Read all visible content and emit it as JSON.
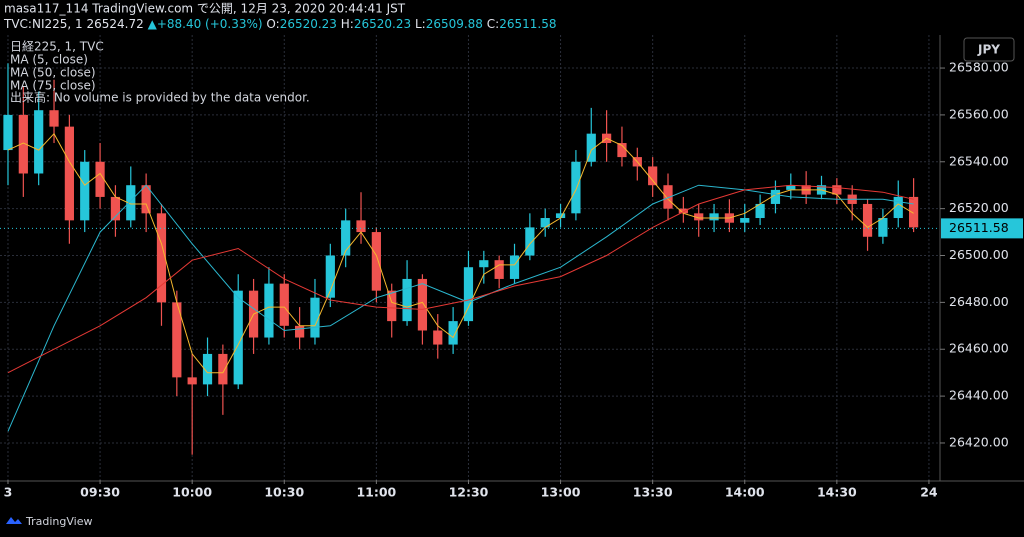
{
  "chart_data": {
    "type": "candlestick",
    "byline": "masa117_114 TradingView.com で公開, 12月 23, 2020 20:44:41 JST",
    "symbol": {
      "name": "TVC:NI225, 1",
      "price": 26524.72,
      "change": "+88.40 (+0.33%)",
      "ohlc": [
        {
          "label": "O:",
          "value": 26520.23
        },
        {
          "label": "H:",
          "value": 26520.23
        },
        {
          "label": "L:",
          "value": 26509.88
        },
        {
          "label": "C:",
          "value": 26511.58
        }
      ]
    },
    "title": "日経225, 1, TVC",
    "volume_note": "出来高: No volume is provided by the data vendor.",
    "currency": "JPY",
    "last_price": 26511.58,
    "brand": "TradingView",
    "up_color": "#26c6da",
    "down_color": "#ef5350",
    "xlim": [
      -2.6,
      303.6
    ],
    "ylim": [
      26404.2,
      26594.1
    ],
    "xticks": [
      {
        "value": 0,
        "label": "3"
      },
      {
        "value": 30,
        "label": "09:30"
      },
      {
        "value": 60,
        "label": "10:00"
      },
      {
        "value": 90,
        "label": "10:30"
      },
      {
        "value": 120,
        "label": "11:00"
      },
      {
        "value": 150,
        "label": "12:30"
      },
      {
        "value": 180,
        "label": "13:00"
      },
      {
        "value": 210,
        "label": "13:30"
      },
      {
        "value": 240,
        "label": "14:00"
      },
      {
        "value": 270,
        "label": "14:30"
      },
      {
        "value": 300,
        "label": "24"
      }
    ],
    "yticks": [
      {
        "value": 26420,
        "label": "26420.00"
      },
      {
        "value": 26440,
        "label": "26440.00"
      },
      {
        "value": 26460,
        "label": "26460.00"
      },
      {
        "value": 26480,
        "label": "26480.00"
      },
      {
        "value": 26500,
        "label": "26500.00"
      },
      {
        "value": 26520,
        "label": "26520.00"
      },
      {
        "value": 26540,
        "label": "26540.00"
      },
      {
        "value": 26560,
        "label": "26560.00"
      },
      {
        "value": 26580,
        "label": "26580.00"
      }
    ],
    "grid": true,
    "candles": {
      "x": [
        0,
        5,
        10,
        15,
        20,
        25,
        30,
        35,
        40,
        45,
        50,
        55,
        60,
        65,
        70,
        75,
        80,
        85,
        90,
        95,
        100,
        105,
        110,
        115,
        120,
        125,
        130,
        135,
        140,
        145,
        150,
        155,
        160,
        165,
        170,
        175,
        180,
        185,
        190,
        195,
        200,
        205,
        210,
        215,
        220,
        225,
        230,
        235,
        240,
        245,
        250,
        255,
        260,
        265,
        270,
        275,
        280,
        285,
        290,
        295
      ],
      "open": [
        26545,
        26560,
        26535,
        26562,
        26555,
        26515,
        26540,
        26525,
        26515,
        26530,
        26518,
        26480,
        26448,
        26445,
        26458,
        26445,
        26485,
        26465,
        26488,
        26470,
        26465,
        26482,
        26500,
        26515,
        26510,
        26485,
        26472,
        26490,
        26468,
        26462,
        26472,
        26495,
        26498,
        26490,
        26500,
        26512,
        26516,
        26518,
        26540,
        26552,
        26548,
        26542,
        26538,
        26530,
        26520,
        26518,
        26515,
        26518,
        26514,
        26516,
        26522,
        26528,
        26530,
        26526,
        26530,
        26526,
        26522,
        26508,
        26516,
        26525
      ],
      "high": [
        26582,
        26572,
        26570,
        26575,
        26560,
        26545,
        26548,
        26530,
        26538,
        26535,
        26522,
        26485,
        26458,
        26465,
        26462,
        26492,
        26490,
        26495,
        26492,
        26478,
        26490,
        26505,
        26520,
        26527,
        26512,
        26488,
        26498,
        26492,
        26475,
        26478,
        26502,
        26502,
        26500,
        26505,
        26518,
        26520,
        26522,
        26545,
        26563,
        26562,
        26555,
        26546,
        26542,
        26535,
        26525,
        26522,
        26522,
        26524,
        26522,
        26526,
        26532,
        26535,
        26536,
        26534,
        26533,
        26530,
        26524,
        26520,
        26532,
        26533
      ],
      "low": [
        26530,
        26525,
        26530,
        26548,
        26505,
        26510,
        26520,
        26508,
        26512,
        26510,
        26470,
        26440,
        26415,
        26440,
        26432,
        26443,
        26458,
        26462,
        26465,
        26460,
        26462,
        26478,
        26495,
        26505,
        26480,
        26465,
        26470,
        26462,
        26456,
        26458,
        26470,
        26488,
        26486,
        26488,
        26498,
        26508,
        26512,
        26515,
        26538,
        26540,
        26538,
        26532,
        26525,
        26515,
        26514,
        26508,
        26510,
        26510,
        26510,
        26513,
        26518,
        26524,
        26522,
        26524,
        26522,
        26515,
        26502,
        26505,
        26512,
        26510
      ],
      "close": [
        26560,
        26535,
        26562,
        26555,
        26515,
        26540,
        26525,
        26515,
        26530,
        26518,
        26480,
        26448,
        26445,
        26458,
        26445,
        26485,
        26465,
        26488,
        26470,
        26465,
        26482,
        26500,
        26515,
        26510,
        26485,
        26472,
        26490,
        26468,
        26462,
        26472,
        26495,
        26498,
        26490,
        26500,
        26512,
        26516,
        26518,
        26540,
        26552,
        26548,
        26542,
        26538,
        26530,
        26520,
        26518,
        26515,
        26518,
        26514,
        26516,
        26522,
        26528,
        26530,
        26526,
        26530,
        26526,
        26522,
        26508,
        26516,
        26525,
        26512
      ]
    },
    "ma": [
      {
        "name": "MA (5, close)",
        "color": "#f5b82e",
        "values": [
          26545,
          26548,
          26545,
          26552,
          26540,
          26530,
          26535,
          26525,
          26522,
          26522,
          26505,
          26480,
          26458,
          26450,
          26450,
          26462,
          26475,
          26478,
          26478,
          26470,
          26470,
          26485,
          26502,
          26510,
          26500,
          26480,
          26478,
          26480,
          26470,
          26465,
          26478,
          26492,
          26496,
          26496,
          26505,
          26512,
          26516,
          26528,
          26545,
          26550,
          26547,
          26540,
          26532,
          26524,
          26518,
          26516,
          26516,
          26516,
          26518,
          26522,
          26526,
          26528,
          26528,
          26528,
          26526,
          26518,
          26512,
          26516,
          26522,
          26518
        ]
      },
      {
        "name": "MA (50, close)",
        "color": "#2bb7cf",
        "x": [
          0,
          15,
          30,
          45,
          60,
          75,
          90,
          105,
          120,
          135,
          150,
          165,
          180,
          195,
          210,
          225,
          240,
          255,
          270,
          285,
          295
        ],
        "values": [
          26425,
          26470,
          26510,
          26530,
          26505,
          26482,
          26468,
          26470,
          26482,
          26488,
          26480,
          26488,
          26495,
          26508,
          26522,
          26530,
          26528,
          26525,
          26524,
          26524,
          26522
        ]
      },
      {
        "name": "MA (75, close)",
        "color": "#e53935",
        "x": [
          0,
          15,
          30,
          45,
          60,
          75,
          90,
          105,
          120,
          135,
          150,
          165,
          180,
          195,
          210,
          225,
          240,
          255,
          270,
          285,
          295
        ],
        "values": [
          26450,
          26460,
          26470,
          26482,
          26498,
          26503,
          26490,
          26481,
          26478,
          26477,
          26481,
          26487,
          26491,
          26500,
          26512,
          26522,
          26528,
          26530,
          26529,
          26527,
          26524
        ]
      }
    ]
  }
}
